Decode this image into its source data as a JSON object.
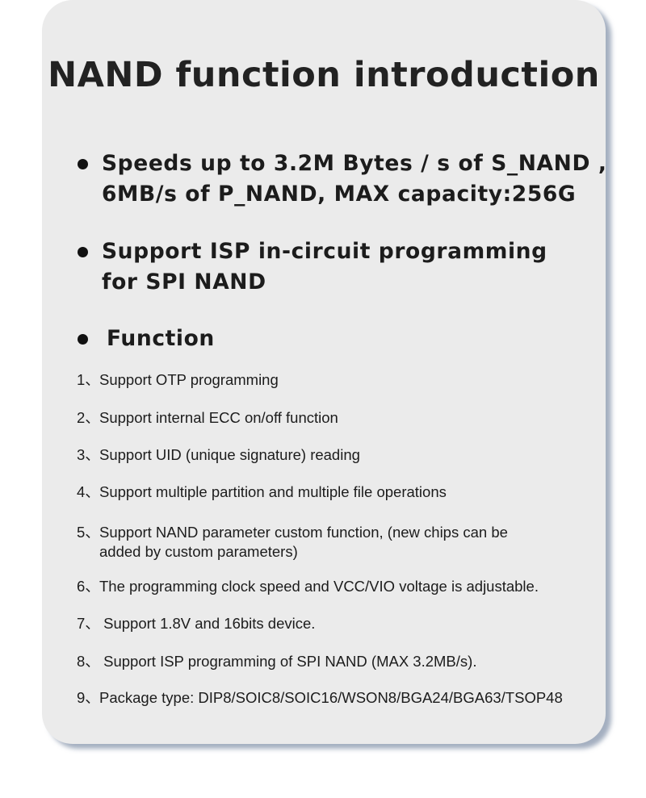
{
  "title": "NAND function introduction",
  "bullets": [
    {
      "lines": [
        "Speeds up to 3.2M Bytes / s of S_NAND ,",
        "6MB/s of P_NAND, MAX capacity:256G"
      ]
    },
    {
      "lines": [
        "Support ISP in-circuit programming",
        "for SPI NAND"
      ]
    },
    {
      "lines": [
        "Function"
      ]
    }
  ],
  "functions": [
    {
      "num": "1、",
      "lines": [
        "Support OTP programming"
      ]
    },
    {
      "num": "2、",
      "lines": [
        "Support internal ECC on/off function"
      ]
    },
    {
      "num": "3、",
      "lines": [
        "Support UID (unique signature) reading"
      ]
    },
    {
      "num": "4、",
      "lines": [
        "Support multiple partition and multiple file operations"
      ]
    },
    {
      "num": "5、",
      "lines": [
        "Support NAND parameter custom function, (new chips can be",
        "added by custom parameters)"
      ]
    },
    {
      "num": "6、",
      "lines": [
        "The programming clock speed and VCC/VIO voltage is adjustable."
      ]
    },
    {
      "num": "7、",
      "lines": [
        " Support 1.8V and 16bits device."
      ]
    },
    {
      "num": "8、",
      "lines": [
        " Support ISP programming of SPI NAND (MAX 3.2MB/s)."
      ]
    },
    {
      "num": "9、",
      "lines": [
        "Package type: DIP8/SOIC8/SOIC16/WSON8/BGA24/BGA63/TSOP48"
      ]
    }
  ]
}
